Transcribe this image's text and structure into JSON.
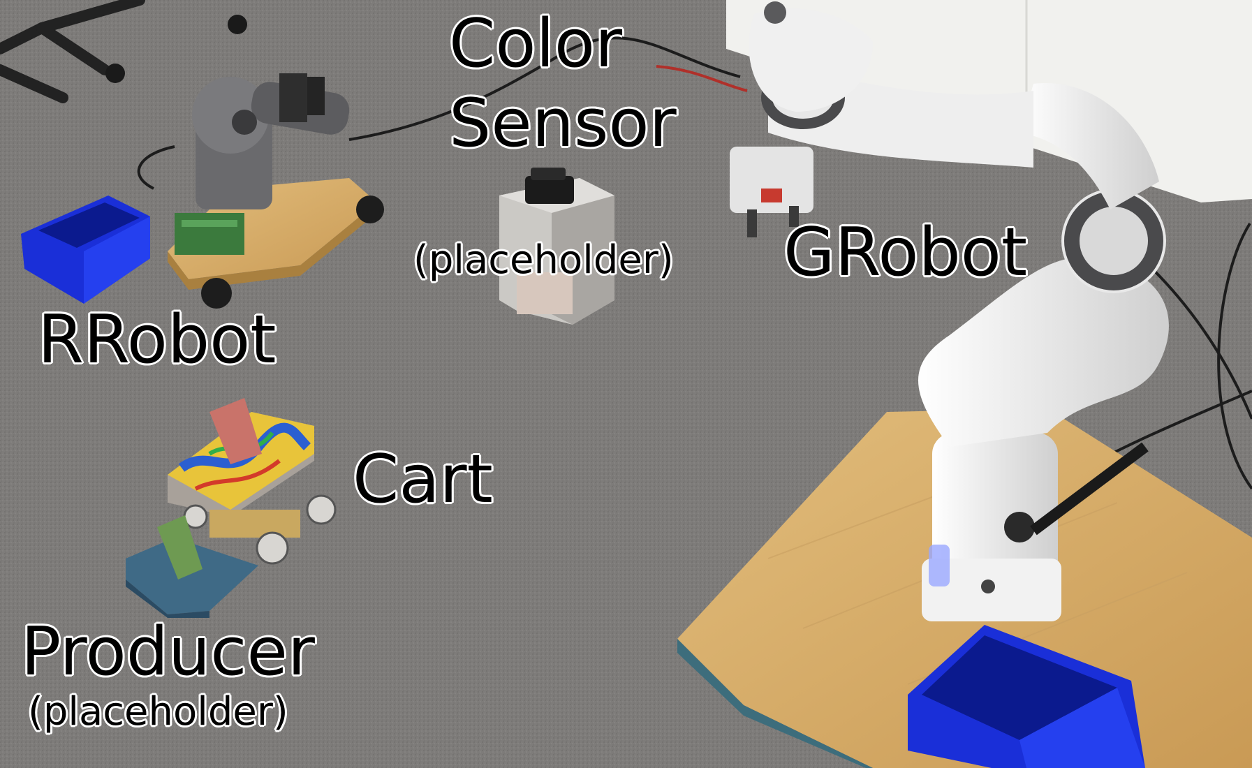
{
  "labels": {
    "color_sensor_line1": "Color",
    "color_sensor_line2": "Sensor",
    "color_sensor_note": "(placeholder)",
    "grobot": "GRobot",
    "rrobot": "RRobot",
    "cart": "Cart",
    "producer": "Producer",
    "producer_note": "(placeholder)"
  },
  "colors": {
    "carpet": "#7d7b79",
    "bin_blue": "#1a2fd8",
    "wood": "#d9b06c",
    "robot_white": "#ececec",
    "robot_dark": "#4a4a4c"
  }
}
